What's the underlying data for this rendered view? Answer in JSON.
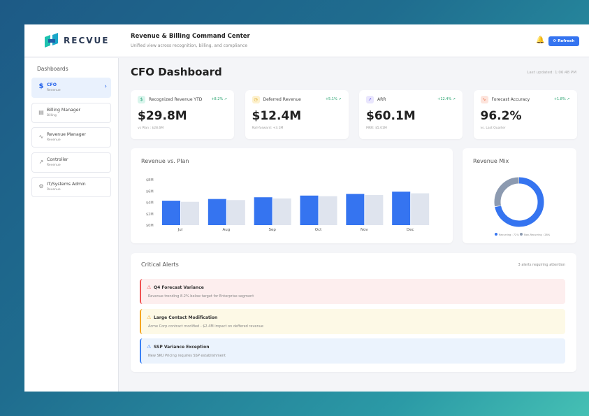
{
  "header": {
    "logo": "RECVUE",
    "title": "Revenue & Billing Command Center",
    "subtitle": "Unified view across recognition, billing, and compliance",
    "refresh_label": "⟳ Refresh"
  },
  "sidebar": {
    "heading": "Dashboards",
    "items": [
      {
        "label": "CFO",
        "sub": "Revenue",
        "icon": "$"
      },
      {
        "label": "Billing Manager",
        "sub": "Billing",
        "icon": "▤"
      },
      {
        "label": "Revenue Manager",
        "sub": "Revenue",
        "icon": "∿"
      },
      {
        "label": "Controller",
        "sub": "Revenue",
        "icon": "↗"
      },
      {
        "label": "IT/Systems Admin",
        "sub": "Revenue",
        "icon": "⚙"
      }
    ]
  },
  "main": {
    "title": "CFO Dashboard",
    "last_updated": "Last updated: 1:06:48 PM",
    "kpis": [
      {
        "label": "Recognized Revenue YTD",
        "change": "+8.2% ↗",
        "value": "$29.8M",
        "note": "vs Plan : $28.6M",
        "icon": "$",
        "bg": "#d9f5ec",
        "fg": "#1f9e73"
      },
      {
        "label": "Deferred Revenue",
        "change": "+5.1% ↗",
        "value": "$12.4M",
        "note": "Roll-forward: +3.1M",
        "icon": "◷",
        "bg": "#fdf1cf",
        "fg": "#d9a20b"
      },
      {
        "label": "ARR",
        "change": "+12.4% ↗",
        "value": "$60.1M",
        "note": "MRR: $5.01M",
        "icon": "↗",
        "bg": "#e9e6fd",
        "fg": "#6d5ce7"
      },
      {
        "label": "Forecast Accuracy",
        "change": "+1.8% ↗",
        "value": "96.2%",
        "note": "vs. Last Quarter",
        "icon": "∿",
        "bg": "#fde4dc",
        "fg": "#e8663d"
      }
    ],
    "alerts_title": "Critical Alerts",
    "alerts_count": "3 alerts requiring attention",
    "alerts": [
      {
        "title": "Q4 Forecast Variance",
        "desc": "Revenue trending 8.2% below target for Enterprise segment",
        "bg": "#fdeeee",
        "border": "#f05252",
        "icon_color": "#f05252"
      },
      {
        "title": "Large Contact Modification",
        "desc": "Acme Corp contract modified - $2.4M impact on deffered revenue",
        "bg": "#fdf9e6",
        "border": "#f5a623",
        "icon_color": "#f5a623"
      },
      {
        "title": "SSP Variance Exception",
        "desc": "New SKU Pricing requires SSP establishment",
        "bg": "#ebf3fd",
        "border": "#3b82f6",
        "icon_color": "#3b82f6"
      }
    ]
  },
  "chart_data": [
    {
      "type": "bar",
      "title": "Revenue vs. Plan",
      "categories": [
        "Jul",
        "Aug",
        "Sep",
        "Oct",
        "Nov",
        "Dec"
      ],
      "series": [
        {
          "name": "Actual",
          "color": "#3574f0",
          "values": [
            4.3,
            4.6,
            4.9,
            5.2,
            5.5,
            5.9
          ]
        },
        {
          "name": "Plan",
          "color": "#dfe4ee",
          "values": [
            4.1,
            4.4,
            4.7,
            5.1,
            5.3,
            5.6
          ]
        }
      ],
      "ylim": [
        0,
        8
      ],
      "yticks": [
        "$0M",
        "$2M",
        "$4M",
        "$6M",
        "$8M"
      ],
      "ytick_values": [
        0,
        2,
        4,
        6,
        8
      ]
    },
    {
      "type": "pie",
      "title": "Revenue Mix",
      "labels": [
        "Recurring : 72%",
        "Non-Recurring : 28%"
      ],
      "values": [
        72,
        28
      ],
      "colors": [
        "#3574f0",
        "#8c9ab0"
      ]
    }
  ]
}
